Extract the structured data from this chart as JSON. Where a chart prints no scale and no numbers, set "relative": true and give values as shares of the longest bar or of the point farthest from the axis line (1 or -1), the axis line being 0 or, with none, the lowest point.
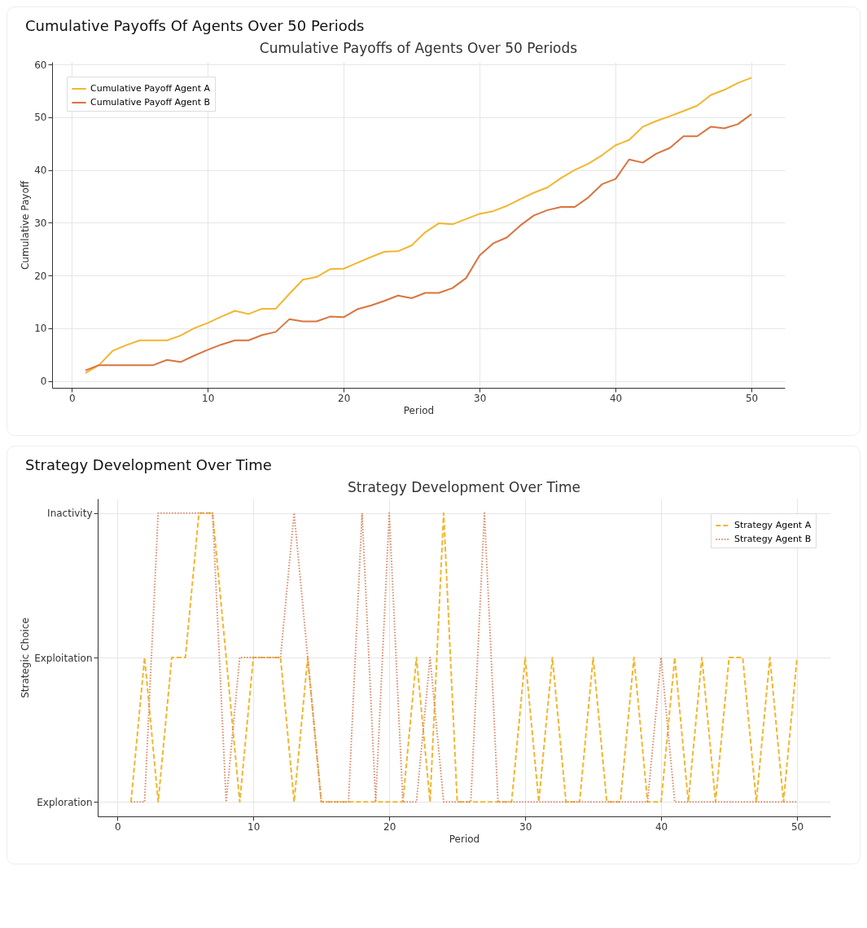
{
  "chart_data": [
    {
      "type": "line",
      "title": "Cumulative Payoffs Of Agents Over 50 Periods",
      "subtitle": "Cumulative Payoffs of Agents Over 50 Periods",
      "xlabel": "Period",
      "ylabel": "Cumulative Payoff",
      "x": [
        1,
        2,
        3,
        4,
        5,
        6,
        7,
        8,
        9,
        10,
        11,
        12,
        13,
        14,
        15,
        16,
        17,
        18,
        19,
        20,
        21,
        22,
        23,
        24,
        25,
        26,
        27,
        28,
        29,
        30,
        31,
        32,
        33,
        34,
        35,
        36,
        37,
        38,
        39,
        40,
        41,
        42,
        43,
        44,
        45,
        46,
        47,
        48,
        49,
        50
      ],
      "series": [
        {
          "name": "Cumulative Payoff Agent A",
          "color": "#f2b630",
          "line_style": "solid",
          "values": [
            1.5,
            3,
            5.7,
            6.8,
            7.7,
            7.7,
            7.7,
            8.6,
            10,
            11,
            12.2,
            13.3,
            12.7,
            13.7,
            13.7,
            16.5,
            19.2,
            19.7,
            21.2,
            21.3,
            22.4,
            23.5,
            24.5,
            24.6,
            25.7,
            28.2,
            29.9,
            29.7,
            30.7,
            31.7,
            32.2,
            33.2,
            34.5,
            35.7,
            36.7,
            38.5,
            40,
            41.2,
            42.8,
            44.7,
            45.7,
            48.2,
            49.3,
            50.2,
            51.2,
            52.2,
            54.2,
            55.2,
            56.5,
            57.5
          ]
        },
        {
          "name": "Cumulative Payoff Agent B",
          "color": "#d9743f",
          "line_style": "solid",
          "values": [
            2,
            3,
            3,
            3,
            3,
            3,
            4,
            3.6,
            4.8,
            5.9,
            6.9,
            7.7,
            7.7,
            8.7,
            9.3,
            11.7,
            11.3,
            11.3,
            12.2,
            12.1,
            13.6,
            14.3,
            15.2,
            16.2,
            15.7,
            16.7,
            16.7,
            17.6,
            19.5,
            23.8,
            26.1,
            27.2,
            29.5,
            31.4,
            32.4,
            33,
            33,
            34.8,
            37.3,
            38.3,
            42,
            41.4,
            43.1,
            44.2,
            46.4,
            46.4,
            48.2,
            47.9,
            48.7,
            50.6
          ]
        }
      ],
      "xlim": [
        -1.45,
        52.45
      ],
      "xticks": [
        0,
        10,
        20,
        30,
        40,
        50
      ],
      "ylim": [
        -1.3,
        60.5
      ],
      "yticks": [
        0,
        10,
        20,
        30,
        40,
        50,
        60
      ],
      "grid": true,
      "legend": "top left"
    },
    {
      "type": "line",
      "title": "Strategy Development Over Time",
      "subtitle": "Strategy Development Over Time",
      "xlabel": "Period",
      "ylabel": "Strategic Choice",
      "x": [
        1,
        2,
        3,
        4,
        5,
        6,
        7,
        8,
        9,
        10,
        11,
        12,
        13,
        14,
        15,
        16,
        17,
        18,
        19,
        20,
        21,
        22,
        23,
        24,
        25,
        26,
        27,
        28,
        29,
        30,
        31,
        32,
        33,
        34,
        35,
        36,
        37,
        38,
        39,
        40,
        41,
        42,
        43,
        44,
        45,
        46,
        47,
        48,
        49,
        50
      ],
      "series": [
        {
          "name": "Strategy Agent A",
          "color": "#f2b630",
          "line_style": "dashed",
          "values": [
            0,
            0.5,
            0,
            0.5,
            0.5,
            1,
            1,
            0.5,
            0,
            0.5,
            0.5,
            0.5,
            0,
            0.5,
            0,
            0,
            0,
            0,
            0,
            0,
            0,
            0.5,
            0,
            1,
            0,
            0,
            0,
            0,
            0,
            0.5,
            0,
            0.5,
            0,
            0,
            0.5,
            0,
            0,
            0.5,
            0,
            0,
            0.5,
            0,
            0.5,
            0,
            0.5,
            0.5,
            0,
            0.5,
            0,
            0.5
          ]
        },
        {
          "name": "Strategy Agent B",
          "color": "#d98a6a",
          "line_style": "dotted",
          "values": [
            0,
            0,
            1,
            1,
            1,
            1,
            1,
            0,
            0.5,
            0.5,
            0.5,
            0.5,
            1,
            0.5,
            0,
            0,
            0,
            1,
            0,
            1,
            0,
            0,
            0.5,
            0,
            0,
            0,
            1,
            0,
            0,
            0,
            0,
            0,
            0,
            0,
            0,
            0,
            0,
            0,
            0,
            0.5,
            0,
            0,
            0,
            0,
            0,
            0,
            0,
            0,
            0,
            0
          ]
        }
      ],
      "xlim": [
        -1.45,
        52.45
      ],
      "xticks": [
        0,
        10,
        20,
        30,
        40,
        50
      ],
      "relative": true,
      "y_categories": [
        "Inactivity",
        "Exploitation",
        "Exploration"
      ],
      "grid": true,
      "legend": "top right"
    }
  ]
}
